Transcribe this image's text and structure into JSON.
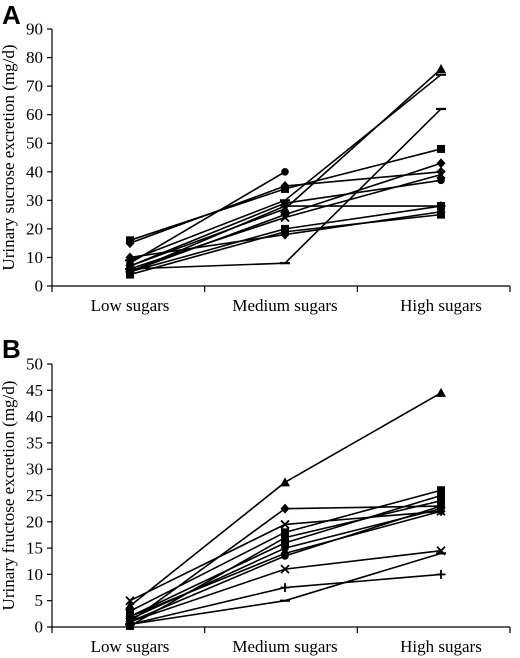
{
  "chart_data": [
    {
      "panel": "A",
      "type": "line",
      "categories": [
        "Low sugars",
        "Medium sugars",
        "High sugars"
      ],
      "ylabel": "Urinary sucrose excretion (mg/d)",
      "ylim": [
        0,
        90
      ],
      "yticks": [
        0,
        10,
        20,
        30,
        40,
        50,
        60,
        70,
        80,
        90
      ],
      "series": [
        {
          "values": [
            8,
            40,
            null
          ],
          "marker": "circle"
        },
        {
          "values": [
            16,
            34,
            48
          ],
          "marker": "square"
        },
        {
          "values": [
            15,
            35,
            40
          ],
          "marker": "diamond"
        },
        {
          "values": [
            9,
            30,
            74
          ],
          "marker": "dash"
        },
        {
          "values": [
            7,
            27,
            76
          ],
          "marker": "triangle"
        },
        {
          "values": [
            6,
            8,
            62
          ],
          "marker": "dash"
        },
        {
          "values": [
            5,
            25,
            43
          ],
          "marker": "diamond"
        },
        {
          "values": [
            7,
            29,
            37
          ],
          "marker": "circle"
        },
        {
          "values": [
            6,
            24,
            39
          ],
          "marker": "x"
        },
        {
          "values": [
            5,
            20,
            28
          ],
          "marker": "square"
        },
        {
          "values": [
            5,
            28,
            28
          ],
          "marker": "plus"
        },
        {
          "values": [
            4,
            19,
            25
          ],
          "marker": "square"
        },
        {
          "values": [
            10,
            18,
            26
          ],
          "marker": "diamond"
        }
      ]
    },
    {
      "panel": "B",
      "type": "line",
      "categories": [
        "Low sugars",
        "Medium sugars",
        "High sugars"
      ],
      "ylabel": "Urinary fructose excretion (mg/d)",
      "ylim": [
        0,
        50
      ],
      "yticks": [
        0,
        5,
        10,
        15,
        20,
        25,
        30,
        35,
        40,
        45,
        50
      ],
      "series": [
        {
          "values": [
            4,
            27.5,
            44.5
          ],
          "marker": "triangle"
        },
        {
          "values": [
            5,
            19.5,
            22
          ],
          "marker": "x"
        },
        {
          "values": [
            1,
            22.5,
            23
          ],
          "marker": "diamond"
        },
        {
          "values": [
            3,
            18,
            26
          ],
          "marker": "square"
        },
        {
          "values": [
            2,
            16,
            25
          ],
          "marker": "square"
        },
        {
          "values": [
            2,
            14,
            22
          ],
          "marker": "diamond"
        },
        {
          "values": [
            1,
            13.5,
            23
          ],
          "marker": "circle"
        },
        {
          "values": [
            1,
            11,
            14.5
          ],
          "marker": "x"
        },
        {
          "values": [
            0.5,
            7.5,
            10
          ],
          "marker": "plus"
        },
        {
          "values": [
            0.5,
            5,
            14
          ],
          "marker": "dash"
        },
        {
          "values": [
            0.2,
            17,
            24
          ],
          "marker": "square"
        },
        {
          "values": [
            1.5,
            15,
            22.5
          ],
          "marker": "circle"
        }
      ]
    }
  ]
}
